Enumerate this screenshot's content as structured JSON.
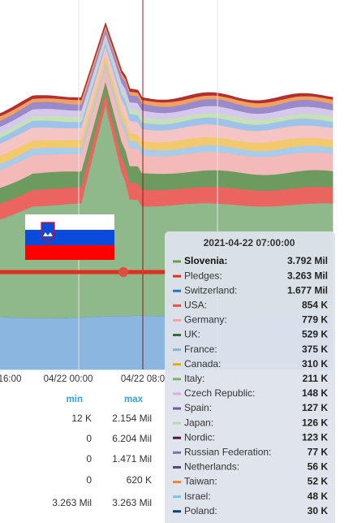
{
  "x_axis": {
    "labels": [
      "16:00",
      "04/22 00:00",
      "04/22 08:0"
    ]
  },
  "tooltip": {
    "title": "2021-04-22 07:00:00",
    "rows": [
      {
        "name": "Slovenia:",
        "color": "#629e51",
        "value": "3.792 Mil"
      },
      {
        "name": "Pledges:",
        "color": "#e02f1f",
        "value": "3.263 Mil"
      },
      {
        "name": "Switzerland:",
        "color": "#1f78c1",
        "value": "1.677 Mil"
      },
      {
        "name": "USA:",
        "color": "#ea4f4a",
        "value": "854 K"
      },
      {
        "name": "Germany:",
        "color": "#f2a3a3",
        "value": "779 K"
      },
      {
        "name": "UK:",
        "color": "#3f6833",
        "value": "529 K"
      },
      {
        "name": "France:",
        "color": "#82b5d8",
        "value": "375 K"
      },
      {
        "name": "Canada:",
        "color": "#e5ac0e",
        "value": "310 K"
      },
      {
        "name": "Italy:",
        "color": "#7eb26d",
        "value": "211 K"
      },
      {
        "name": "Czech Republic:",
        "color": "#e5a8e2",
        "value": "148 K"
      },
      {
        "name": "Spain:",
        "color": "#705da0",
        "value": "127 K"
      },
      {
        "name": "Japan:",
        "color": "#b7dbab",
        "value": "126 K"
      },
      {
        "name": "Nordic:",
        "color": "#511749",
        "value": "123 K"
      },
      {
        "name": "Russian Federation:",
        "color": "#806eb7",
        "value": "77 K"
      },
      {
        "name": "Netherlands:",
        "color": "#584477",
        "value": "56 K"
      },
      {
        "name": "Taiwan:",
        "color": "#ef843c",
        "value": "52 K"
      },
      {
        "name": "Israel:",
        "color": "#6ed0e0",
        "value": "48 K"
      },
      {
        "name": "Poland:",
        "color": "#0a437c",
        "value": "30 K"
      }
    ]
  },
  "table": {
    "columns": [
      "min",
      "max"
    ],
    "rows": [
      [
        "12 K",
        "2.154 Mil"
      ],
      [
        "0",
        "6.204 Mil"
      ],
      [
        "0",
        "1.471 Mil"
      ],
      [
        "0",
        "620 K"
      ],
      [
        "3.263 Mil",
        "3.263 Mil"
      ]
    ]
  }
}
